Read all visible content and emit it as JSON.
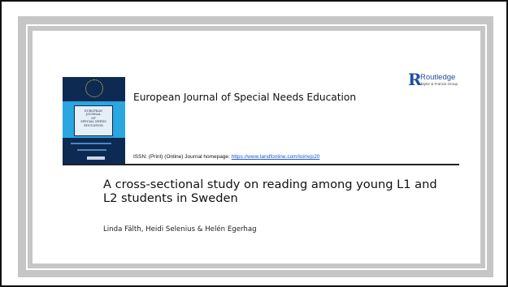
{
  "cover": {
    "title_lines": [
      "EUROPEAN",
      "JOURNAL",
      "OF",
      "SPECIAL NEEDS",
      "EDUCATION"
    ]
  },
  "journal": {
    "title": "European Journal of Special Needs Education",
    "issn_prefix": "ISSN: (Print) (Online) Journal homepage: ",
    "homepage_url": "https://www.tandfonline.com/loi/rejs20"
  },
  "publisher": {
    "mark": "R",
    "name": "Routledge",
    "sub": "Taylor & Francis Group"
  },
  "article": {
    "title": "A cross-sectional study on reading among young L1 and L2 students in Sweden",
    "authors": "Linda Fälth, Heidi Selenius & Helén Egerhag"
  },
  "colors": {
    "cover_blue": "#2aa6e0",
    "cover_navy": "#0d2a52",
    "link": "#1a56c9",
    "routledge_blue": "#1f4e9a"
  }
}
